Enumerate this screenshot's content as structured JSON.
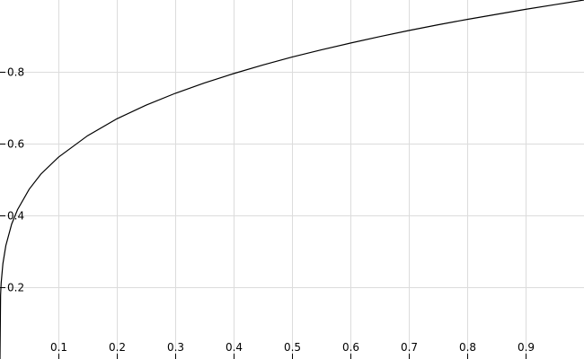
{
  "chart_data": {
    "type": "line",
    "title": "",
    "xlabel": "",
    "ylabel": "",
    "xlim": [
      0,
      1
    ],
    "ylim": [
      0,
      1
    ],
    "grid": true,
    "x_ticks": [
      0.1,
      0.2,
      0.3,
      0.4,
      0.5,
      0.6,
      0.7,
      0.8,
      0.9
    ],
    "x_tick_labels": [
      "0.1",
      "0.2",
      "0.3",
      "0.4",
      "0.5",
      "0.6",
      "0.7",
      "0.8",
      "0.9"
    ],
    "y_ticks": [
      0.2,
      0.4,
      0.6,
      0.8
    ],
    "y_tick_labels": [
      "0.2",
      "0.4",
      "0.6",
      "0.8"
    ],
    "series": [
      {
        "color": "#000000",
        "x": [
          0,
          0.001,
          0.002,
          0.005,
          0.01,
          0.02,
          0.03,
          0.05,
          0.07,
          0.1,
          0.15,
          0.2,
          0.25,
          0.3,
          0.35,
          0.4,
          0.45,
          0.5,
          0.55,
          0.6,
          0.65,
          0.7,
          0.75,
          0.8,
          0.85,
          0.9,
          0.95,
          1.0
        ],
        "y": [
          0,
          0.178,
          0.212,
          0.266,
          0.316,
          0.376,
          0.416,
          0.473,
          0.515,
          0.562,
          0.622,
          0.669,
          0.707,
          0.74,
          0.769,
          0.795,
          0.819,
          0.841,
          0.861,
          0.88,
          0.898,
          0.915,
          0.931,
          0.946,
          0.96,
          0.974,
          0.987,
          1.0
        ]
      }
    ]
  }
}
